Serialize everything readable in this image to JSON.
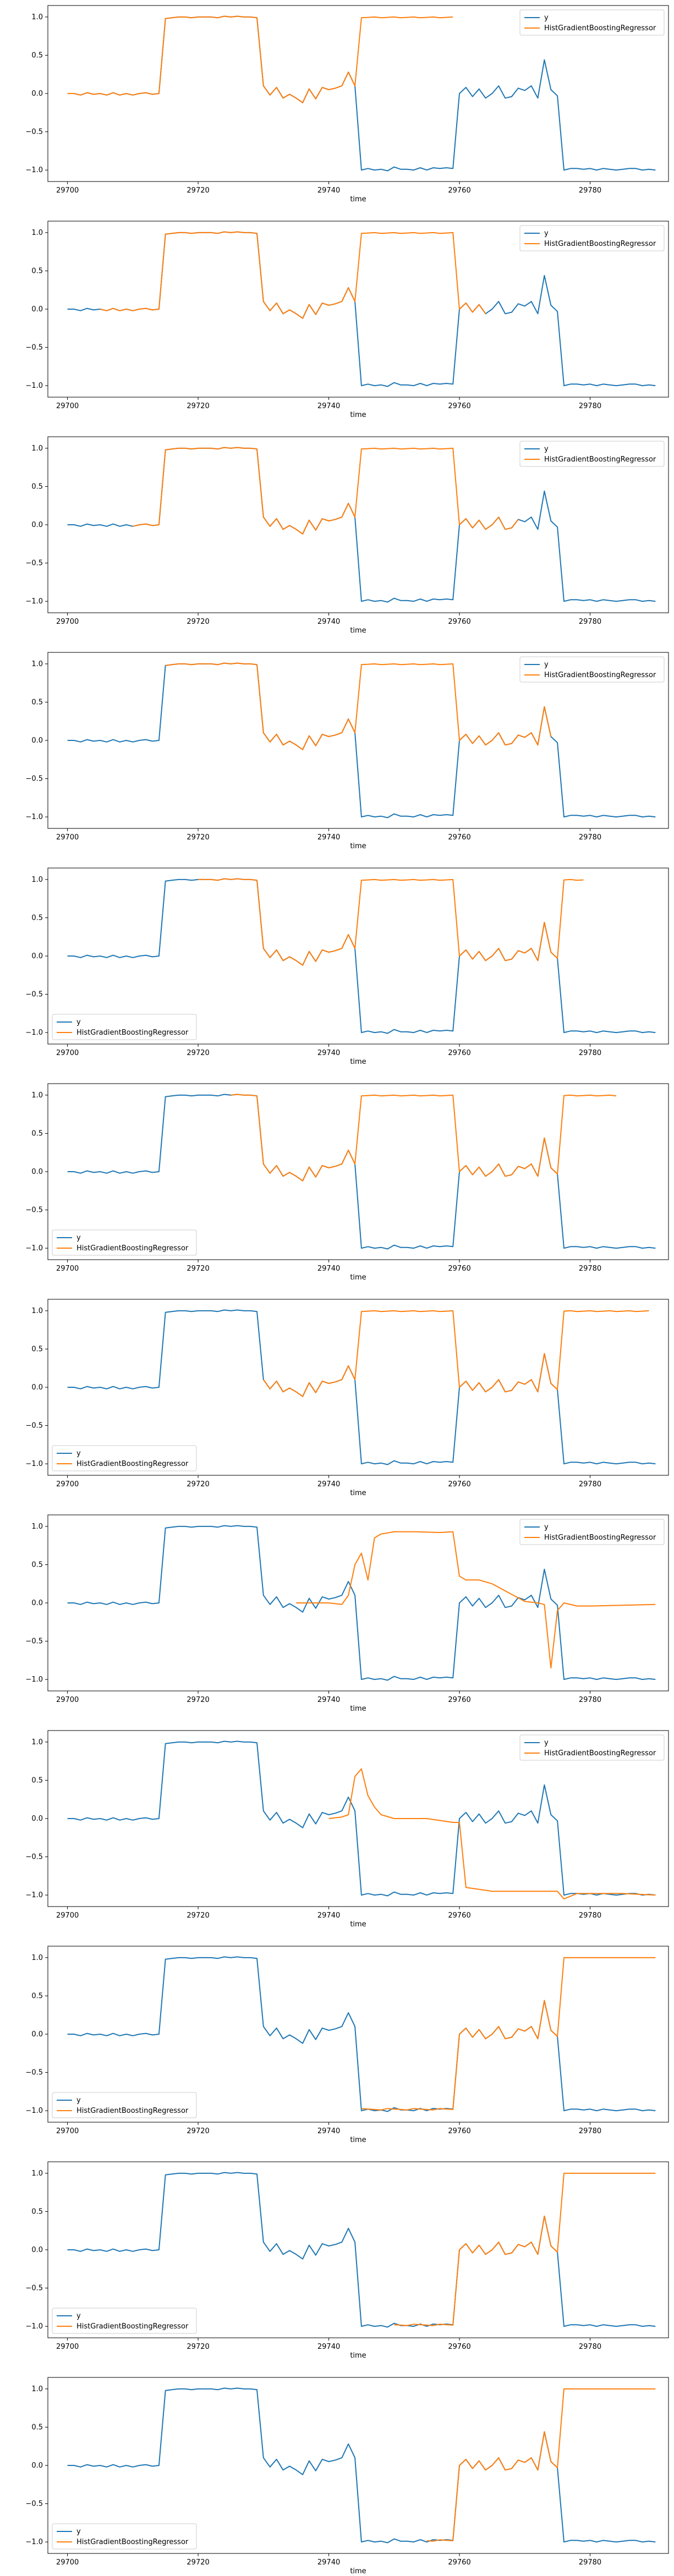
{
  "chart_data": [
    {
      "type": "line",
      "xlabel": "time",
      "xlim": [
        29697,
        29792
      ],
      "ylim": [
        -1.15,
        1.15
      ],
      "xticks": [
        29700,
        29720,
        29740,
        29760,
        29780
      ],
      "yticks": [
        -1.0,
        -0.5,
        0.0,
        0.5,
        1.0
      ],
      "legend": "top-right",
      "series": [
        {
          "name": "y",
          "color": "#1f77b4"
        },
        {
          "name": "HistGradientBoostingRegressor",
          "color": "#ff7f0e",
          "x_start": 29700,
          "x_end": 29759
        }
      ]
    },
    {
      "type": "line",
      "xlabel": "time",
      "xlim": [
        29697,
        29792
      ],
      "ylim": [
        -1.15,
        1.15
      ],
      "xticks": [
        29700,
        29720,
        29740,
        29760,
        29780
      ],
      "yticks": [
        -1.0,
        -0.5,
        0.0,
        0.5,
        1.0
      ],
      "legend": "top-right",
      "series": [
        {
          "name": "y",
          "color": "#1f77b4"
        },
        {
          "name": "HistGradientBoostingRegressor",
          "color": "#ff7f0e",
          "x_start": 29705,
          "x_end": 29764
        }
      ]
    },
    {
      "type": "line",
      "xlabel": "time",
      "xlim": [
        29697,
        29792
      ],
      "ylim": [
        -1.15,
        1.15
      ],
      "xticks": [
        29700,
        29720,
        29740,
        29760,
        29780
      ],
      "yticks": [
        -1.0,
        -0.5,
        0.0,
        0.5,
        1.0
      ],
      "legend": "top-right",
      "series": [
        {
          "name": "y",
          "color": "#1f77b4"
        },
        {
          "name": "HistGradientBoostingRegressor",
          "color": "#ff7f0e",
          "x_start": 29710,
          "x_end": 29769
        }
      ]
    },
    {
      "type": "line",
      "xlabel": "time",
      "xlim": [
        29697,
        29792
      ],
      "ylim": [
        -1.15,
        1.15
      ],
      "xticks": [
        29700,
        29720,
        29740,
        29760,
        29780
      ],
      "yticks": [
        -1.0,
        -0.5,
        0.0,
        0.5,
        1.0
      ],
      "legend": "top-right",
      "series": [
        {
          "name": "y",
          "color": "#1f77b4"
        },
        {
          "name": "HistGradientBoostingRegressor",
          "color": "#ff7f0e",
          "x_start": 29715,
          "x_end": 29774
        }
      ]
    },
    {
      "type": "line",
      "xlabel": "time",
      "xlim": [
        29697,
        29792
      ],
      "ylim": [
        -1.15,
        1.15
      ],
      "xticks": [
        29700,
        29720,
        29740,
        29760,
        29780
      ],
      "yticks": [
        -1.0,
        -0.5,
        0.0,
        0.5,
        1.0
      ],
      "legend": "bottom-left",
      "series": [
        {
          "name": "y",
          "color": "#1f77b4"
        },
        {
          "name": "HistGradientBoostingRegressor",
          "color": "#ff7f0e",
          "x_start": 29720,
          "x_end": 29779
        }
      ]
    },
    {
      "type": "line",
      "xlabel": "time",
      "xlim": [
        29697,
        29792
      ],
      "ylim": [
        -1.15,
        1.15
      ],
      "xticks": [
        29700,
        29720,
        29740,
        29760,
        29780
      ],
      "yticks": [
        -1.0,
        -0.5,
        0.0,
        0.5,
        1.0
      ],
      "legend": "bottom-left",
      "series": [
        {
          "name": "y",
          "color": "#1f77b4"
        },
        {
          "name": "HistGradientBoostingRegressor",
          "color": "#ff7f0e",
          "x_start": 29725,
          "x_end": 29784
        }
      ]
    },
    {
      "type": "line",
      "xlabel": "time",
      "xlim": [
        29697,
        29792
      ],
      "ylim": [
        -1.15,
        1.15
      ],
      "xticks": [
        29700,
        29720,
        29740,
        29760,
        29780
      ],
      "yticks": [
        -1.0,
        -0.5,
        0.0,
        0.5,
        1.0
      ],
      "legend": "bottom-left",
      "series": [
        {
          "name": "y",
          "color": "#1f77b4"
        },
        {
          "name": "HistGradientBoostingRegressor",
          "color": "#ff7f0e",
          "x_start": 29730,
          "x_end": 29789
        }
      ]
    },
    {
      "type": "line",
      "xlabel": "time",
      "xlim": [
        29697,
        29792
      ],
      "ylim": [
        -1.15,
        1.15
      ],
      "xticks": [
        29700,
        29720,
        29740,
        29760,
        29780
      ],
      "yticks": [
        -1.0,
        -0.5,
        0.0,
        0.5,
        1.0
      ],
      "legend": "top-right",
      "series": [
        {
          "name": "y",
          "color": "#1f77b4"
        },
        {
          "name": "HistGradientBoostingRegressor",
          "color": "#ff7f0e",
          "x": [
            29735,
            29740,
            29742,
            29743,
            29744,
            29745,
            29746,
            29747,
            29748,
            29750,
            29753,
            29757,
            29759,
            29760,
            29761,
            29763,
            29765,
            29770,
            29772,
            29773,
            29774,
            29775,
            29776,
            29778,
            29780,
            29785,
            29790
          ],
          "y": [
            0.0,
            0.0,
            -0.02,
            0.1,
            0.5,
            0.65,
            0.3,
            0.85,
            0.9,
            0.93,
            0.93,
            0.92,
            0.93,
            0.35,
            0.3,
            0.3,
            0.25,
            0.02,
            0.0,
            -0.02,
            -0.85,
            -0.1,
            0.0,
            -0.04,
            -0.04,
            -0.03,
            -0.02
          ]
        }
      ]
    },
    {
      "type": "line",
      "xlabel": "time",
      "xlim": [
        29697,
        29792
      ],
      "ylim": [
        -1.15,
        1.15
      ],
      "xticks": [
        29700,
        29720,
        29740,
        29760,
        29780
      ],
      "yticks": [
        -1.0,
        -0.5,
        0.0,
        0.5,
        1.0
      ],
      "legend": "top-right",
      "series": [
        {
          "name": "y",
          "color": "#1f77b4"
        },
        {
          "name": "HistGradientBoostingRegressor",
          "color": "#ff7f0e",
          "x": [
            29740,
            29742,
            29743,
            29744,
            29745,
            29746,
            29747,
            29748,
            29750,
            29755,
            29759,
            29760,
            29761,
            29765,
            29770,
            29774,
            29775,
            29776,
            29778,
            29780,
            29785,
            29790
          ],
          "y": [
            0.0,
            0.02,
            0.05,
            0.55,
            0.65,
            0.3,
            0.15,
            0.05,
            0.0,
            0.0,
            -0.05,
            -0.05,
            -0.9,
            -0.95,
            -0.95,
            -0.95,
            -0.95,
            -1.05,
            -0.98,
            -0.98,
            -0.98,
            -1.0
          ]
        }
      ]
    },
    {
      "type": "line",
      "xlabel": "time",
      "xlim": [
        29697,
        29792
      ],
      "ylim": [
        -1.15,
        1.15
      ],
      "xticks": [
        29700,
        29720,
        29740,
        29760,
        29780
      ],
      "yticks": [
        -1.0,
        -0.5,
        0.0,
        0.5,
        1.0
      ],
      "legend": "bottom-left",
      "series": [
        {
          "name": "y",
          "color": "#1f77b4"
        },
        {
          "name": "HistGradientBoostingRegressor",
          "color": "#ff7f0e",
          "x_start": 29745,
          "x_end": 29790
        }
      ]
    },
    {
      "type": "line",
      "xlabel": "time",
      "xlim": [
        29697,
        29792
      ],
      "ylim": [
        -1.15,
        1.15
      ],
      "xticks": [
        29700,
        29720,
        29740,
        29760,
        29780
      ],
      "yticks": [
        -1.0,
        -0.5,
        0.0,
        0.5,
        1.0
      ],
      "legend": "bottom-left",
      "series": [
        {
          "name": "y",
          "color": "#1f77b4"
        },
        {
          "name": "HistGradientBoostingRegressor",
          "color": "#ff7f0e",
          "x_start": 29750,
          "x_end": 29790
        }
      ]
    },
    {
      "type": "line",
      "xlabel": "time",
      "xlim": [
        29697,
        29792
      ],
      "ylim": [
        -1.15,
        1.15
      ],
      "xticks": [
        29700,
        29720,
        29740,
        29760,
        29780
      ],
      "yticks": [
        -1.0,
        -0.5,
        0.0,
        0.5,
        1.0
      ],
      "legend": "bottom-left",
      "series": [
        {
          "name": "y",
          "color": "#1f77b4"
        },
        {
          "name": "HistGradientBoostingRegressor",
          "color": "#ff7f0e",
          "x_start": 29755,
          "x_end": 29790
        }
      ]
    }
  ],
  "y_actual": {
    "x_start": 29700,
    "values": [
      0.0,
      0.0,
      -0.02,
      0.01,
      -0.01,
      0.0,
      -0.02,
      0.01,
      -0.02,
      0.0,
      -0.02,
      0.0,
      0.01,
      -0.01,
      0.0,
      0.98,
      0.99,
      1.0,
      1.0,
      0.99,
      1.0,
      1.0,
      1.0,
      0.99,
      1.01,
      1.0,
      1.01,
      1.0,
      1.0,
      0.99,
      0.1,
      -0.02,
      0.08,
      -0.06,
      -0.01,
      -0.06,
      -0.12,
      0.06,
      -0.07,
      0.08,
      0.05,
      0.07,
      0.1,
      0.28,
      0.1,
      -1.0,
      -0.98,
      -1.0,
      -0.99,
      -1.01,
      -0.96,
      -0.99,
      -0.99,
      -1.0,
      -0.97,
      -1.0,
      -0.97,
      -0.98,
      -0.97,
      -0.98,
      0.0,
      0.08,
      -0.04,
      0.06,
      -0.06,
      0.0,
      0.1,
      -0.06,
      -0.04,
      0.07,
      0.04,
      0.1,
      -0.06,
      0.44,
      0.05,
      -0.03,
      -1.0,
      -0.98,
      -0.98,
      -0.99,
      -0.98,
      -1.0,
      -0.98,
      -0.99,
      -1.0,
      -0.99,
      -0.98,
      -0.98,
      -1.0,
      -0.99,
      -1.0
    ]
  }
}
